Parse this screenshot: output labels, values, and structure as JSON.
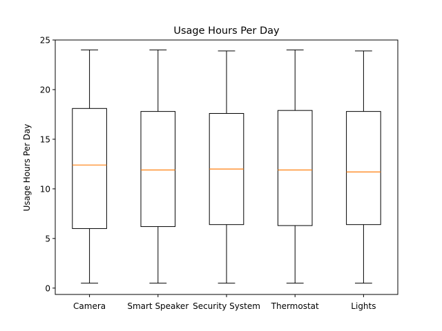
{
  "chart_data": {
    "type": "box",
    "title": "Usage Hours Per Day",
    "xlabel": "",
    "ylabel": "Usage Hours Per Day",
    "ylim": [
      -0.64,
      25.0
    ],
    "yticks": [
      0,
      5,
      10,
      15,
      20,
      25
    ],
    "grid": false,
    "categories": [
      "Camera",
      "Smart Speaker",
      "Security System",
      "Thermostat",
      "Lights"
    ],
    "boxes": [
      {
        "whisker_low": 0.5,
        "q1": 6.0,
        "median": 12.4,
        "q3": 18.1,
        "whisker_high": 24.0
      },
      {
        "whisker_low": 0.5,
        "q1": 6.2,
        "median": 11.9,
        "q3": 17.8,
        "whisker_high": 24.0
      },
      {
        "whisker_low": 0.5,
        "q1": 6.4,
        "median": 12.0,
        "q3": 17.6,
        "whisker_high": 23.9
      },
      {
        "whisker_low": 0.5,
        "q1": 6.3,
        "median": 11.9,
        "q3": 17.9,
        "whisker_high": 24.0
      },
      {
        "whisker_low": 0.5,
        "q1": 6.4,
        "median": 11.7,
        "q3": 17.8,
        "whisker_high": 23.9
      }
    ],
    "colors": {
      "box": "#000000",
      "median": "#ff7f0e",
      "background": "#ffffff"
    }
  }
}
